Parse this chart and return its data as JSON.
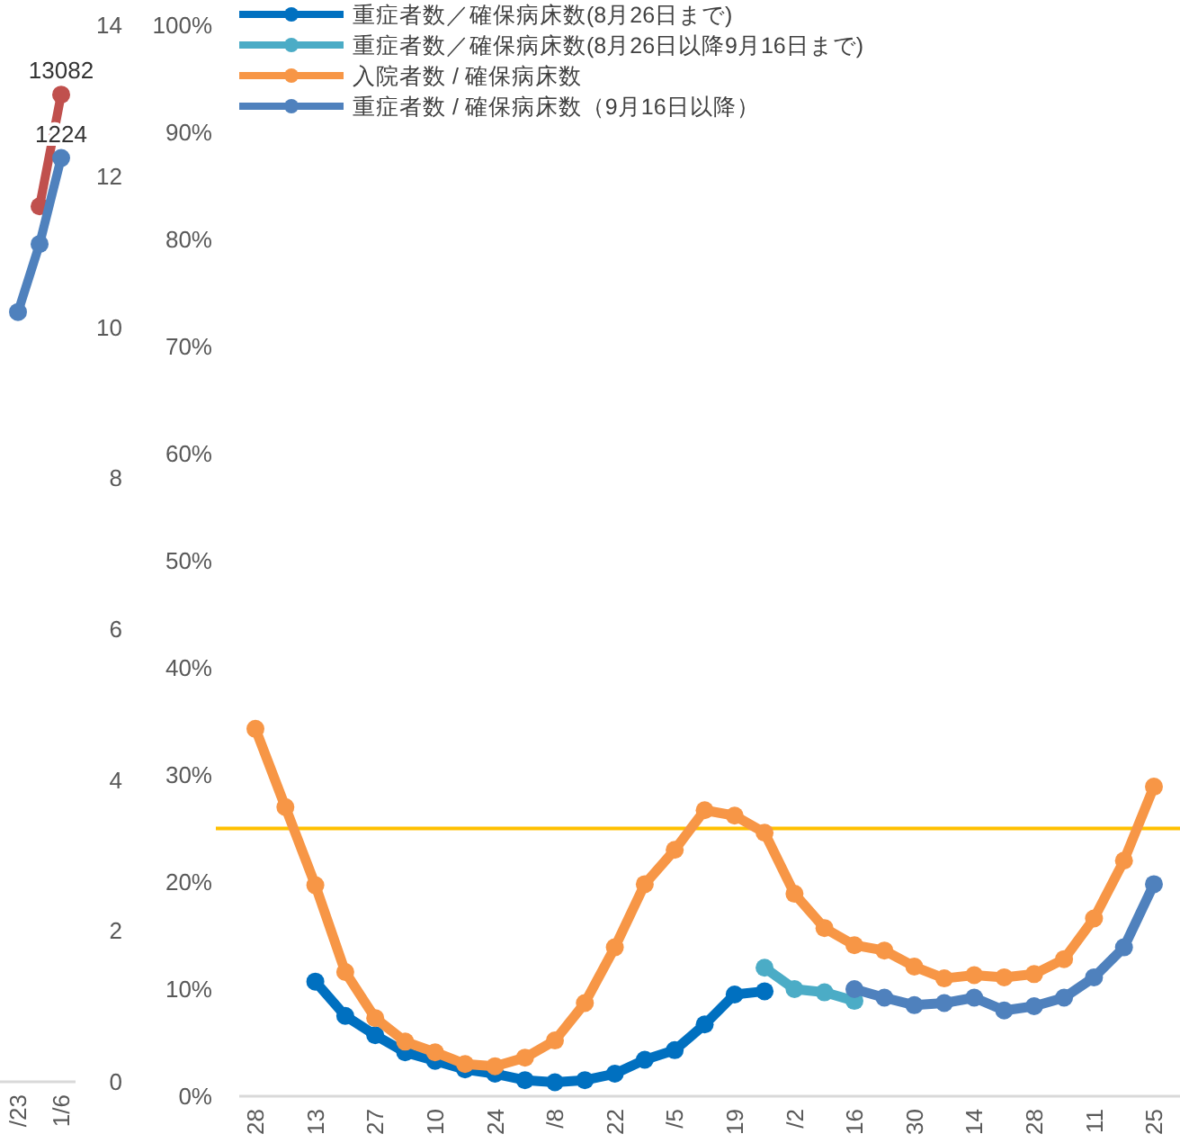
{
  "chart_data": [
    {
      "type": "line",
      "categories": [
        "/23",
        null,
        "1/6"
      ],
      "series": [
        {
          "color": "#c0504d",
          "values": [
            null,
            11.6,
            13.08
          ]
        },
        {
          "color": "#4f81bd",
          "values": [
            10.2,
            11.1,
            12.24
          ]
        }
      ],
      "ylim": [
        0,
        14
      ],
      "yticks": [
        0,
        2,
        4,
        6,
        8,
        10,
        12,
        14
      ],
      "marker": "circle",
      "grid": false,
      "legend": false,
      "annotations": [
        {
          "text": "13082",
          "x": "1/6",
          "y": 13.08
        },
        {
          "text": "1224",
          "x": "1/6",
          "y": 12.24
        }
      ]
    },
    {
      "type": "line",
      "categories": [
        "28",
        null,
        "13",
        null,
        "27",
        null,
        "10",
        null,
        "24",
        null,
        "/8",
        null,
        "22",
        null,
        "/5",
        null,
        "19",
        null,
        "/2",
        null,
        "16",
        null,
        "30",
        null,
        "14",
        null,
        "28",
        null,
        "11",
        null,
        "25"
      ],
      "series": [
        {
          "name": "重症者数／確保病床数(8月26日まで)",
          "color": "#0070c0",
          "values": [
            null,
            null,
            10.7,
            7.5,
            5.7,
            4.1,
            3.3,
            2.5,
            2.1,
            1.5,
            1.3,
            1.5,
            2.1,
            3.4,
            4.3,
            6.7,
            9.5,
            9.8,
            null,
            null,
            null,
            null,
            null,
            null,
            null,
            null,
            null,
            null,
            null,
            null,
            null
          ]
        },
        {
          "name": "重症者数／確保病床数(8月26日以降9月16日まで)",
          "color": "#4bacc6",
          "values": [
            null,
            null,
            null,
            null,
            null,
            null,
            null,
            null,
            null,
            null,
            null,
            null,
            null,
            null,
            null,
            null,
            null,
            12.0,
            10.0,
            9.7,
            8.9,
            null,
            null,
            null,
            null,
            null,
            null,
            null,
            null,
            null,
            null
          ]
        },
        {
          "name": "入院者数 / 確保病床数",
          "color": "#f79646",
          "values": [
            34.3,
            27.0,
            19.7,
            11.6,
            7.3,
            5.1,
            4.1,
            3.0,
            2.8,
            3.6,
            5.2,
            8.7,
            13.9,
            19.8,
            23.0,
            26.7,
            26.2,
            24.6,
            18.9,
            15.7,
            14.1,
            13.6,
            12.1,
            11.0,
            11.3,
            11.1,
            11.4,
            12.8,
            16.6,
            22.0,
            28.9
          ]
        },
        {
          "name": "重症者数 / 確保病床数（9月16日以降）",
          "color": "#4f81bd",
          "values": [
            null,
            null,
            null,
            null,
            null,
            null,
            null,
            null,
            null,
            null,
            null,
            null,
            null,
            null,
            null,
            null,
            null,
            null,
            null,
            null,
            10.0,
            9.2,
            8.5,
            8.7,
            9.2,
            8.0,
            8.4,
            9.2,
            11.1,
            13.9,
            19.8
          ]
        }
      ],
      "ylim": [
        0,
        100
      ],
      "yticks": [
        {
          "value": 0,
          "label": "0%"
        },
        {
          "value": 10,
          "label": "10%"
        },
        {
          "value": 20,
          "label": "20%"
        },
        {
          "value": 30,
          "label": "30%"
        },
        {
          "value": 40,
          "label": "40%"
        },
        {
          "value": 50,
          "label": "50%"
        },
        {
          "value": 60,
          "label": "60%"
        },
        {
          "value": 70,
          "label": "70%"
        },
        {
          "value": 80,
          "label": "80%"
        },
        {
          "value": 90,
          "label": "90%"
        },
        {
          "value": 100,
          "label": "100%"
        }
      ],
      "ref_lines": [
        {
          "axis": "y",
          "value": 25,
          "color": "#ffc000"
        }
      ],
      "marker": "circle",
      "grid": false,
      "legend": "top left"
    }
  ]
}
